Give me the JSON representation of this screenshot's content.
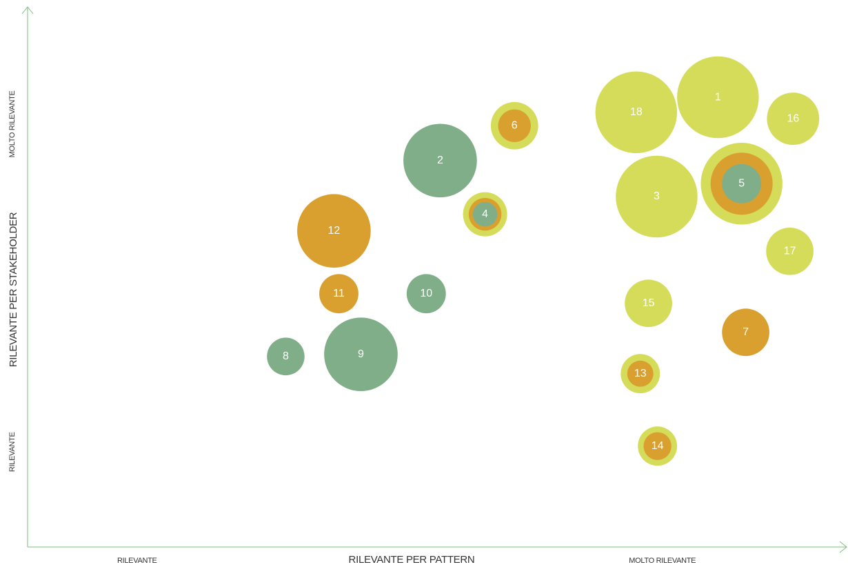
{
  "chart_data": {
    "type": "bubble",
    "xlabel": "RILEVANTE PER PATTERN",
    "ylabel": "RILEVANTE PER STAKEHOLDER",
    "xlim": [
      0,
      100
    ],
    "ylim": [
      0,
      100
    ],
    "xticks": [
      {
        "value": 13.4,
        "label": "RILEVANTE"
      },
      {
        "value": 77.7,
        "label": "MOLTO RILEVANTE"
      }
    ],
    "yticks": [
      {
        "value": 17.7,
        "label": "RILEVANTE"
      },
      {
        "value": 78.8,
        "label": "MOLTO RILEVANTE"
      }
    ],
    "axis_color": "#7cc07c",
    "points": [
      {
        "label": "1",
        "x": 84.5,
        "y": 83.8,
        "rings": [
          {
            "color": "#d4dc5a",
            "size": 5.0
          }
        ]
      },
      {
        "label": "2",
        "x": 50.5,
        "y": 72.0,
        "rings": [
          {
            "color": "#7fae88",
            "size": 4.5
          }
        ]
      },
      {
        "label": "3",
        "x": 77.0,
        "y": 65.3,
        "rings": [
          {
            "color": "#d4dc5a",
            "size": 5.0
          }
        ]
      },
      {
        "label": "4",
        "x": 56.0,
        "y": 62.0,
        "rings": [
          {
            "color": "#d4dc5a",
            "size": 2.7
          },
          {
            "color": "#d9a030",
            "size": 2.0
          },
          {
            "color": "#7fae88",
            "size": 1.5
          }
        ]
      },
      {
        "label": "5",
        "x": 87.4,
        "y": 67.7,
        "rings": [
          {
            "color": "#d4dc5a",
            "size": 5.0
          },
          {
            "color": "#d9a030",
            "size": 3.8
          },
          {
            "color": "#7fae88",
            "size": 2.4
          }
        ]
      },
      {
        "label": "6",
        "x": 59.6,
        "y": 78.5,
        "rings": [
          {
            "color": "#d4dc5a",
            "size": 2.9
          },
          {
            "color": "#d9a030",
            "size": 2.0
          }
        ]
      },
      {
        "label": "7",
        "x": 87.9,
        "y": 40.0,
        "rings": [
          {
            "color": "#d9a030",
            "size": 2.9
          }
        ]
      },
      {
        "label": "8",
        "x": 31.6,
        "y": 35.5,
        "rings": [
          {
            "color": "#7fae88",
            "size": 2.3
          }
        ]
      },
      {
        "label": "9",
        "x": 40.8,
        "y": 35.9,
        "rings": [
          {
            "color": "#7fae88",
            "size": 4.5
          }
        ]
      },
      {
        "label": "10",
        "x": 48.8,
        "y": 47.2,
        "rings": [
          {
            "color": "#7fae88",
            "size": 2.4
          }
        ]
      },
      {
        "label": "11",
        "x": 38.1,
        "y": 47.2,
        "rings": [
          {
            "color": "#d9a030",
            "size": 2.4
          }
        ]
      },
      {
        "label": "12",
        "x": 37.5,
        "y": 58.9,
        "rings": [
          {
            "color": "#d9a030",
            "size": 4.5
          }
        ]
      },
      {
        "label": "13",
        "x": 75.0,
        "y": 32.3,
        "rings": [
          {
            "color": "#d4dc5a",
            "size": 2.4
          },
          {
            "color": "#d9a030",
            "size": 1.6
          }
        ]
      },
      {
        "label": "14",
        "x": 77.1,
        "y": 18.8,
        "rings": [
          {
            "color": "#d4dc5a",
            "size": 2.4
          },
          {
            "color": "#d9a030",
            "size": 1.7
          }
        ]
      },
      {
        "label": "15",
        "x": 76.0,
        "y": 45.4,
        "rings": [
          {
            "color": "#d4dc5a",
            "size": 2.9
          }
        ]
      },
      {
        "label": "16",
        "x": 93.7,
        "y": 79.8,
        "rings": [
          {
            "color": "#d4dc5a",
            "size": 3.2
          }
        ]
      },
      {
        "label": "17",
        "x": 93.3,
        "y": 55.1,
        "rings": [
          {
            "color": "#d4dc5a",
            "size": 2.9
          }
        ]
      },
      {
        "label": "18",
        "x": 74.5,
        "y": 81.0,
        "rings": [
          {
            "color": "#d4dc5a",
            "size": 5.0
          }
        ]
      }
    ]
  }
}
